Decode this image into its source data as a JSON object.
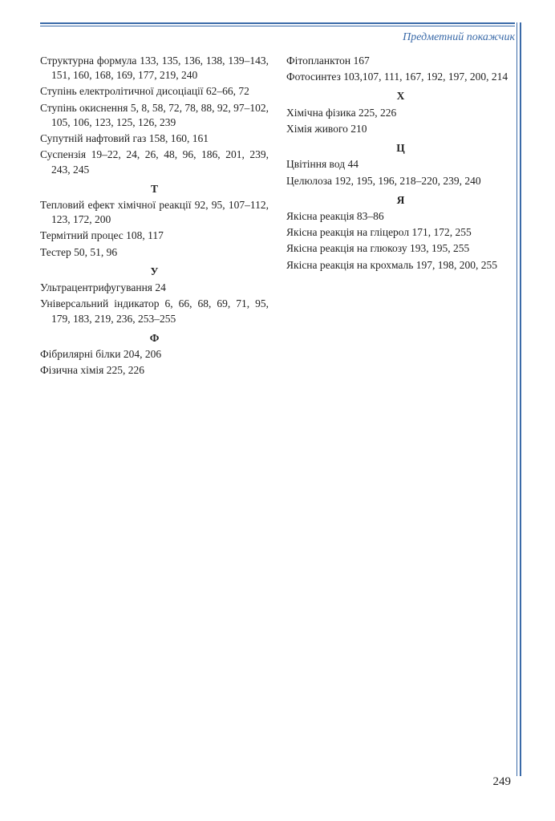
{
  "header": {
    "title": "Предметний покажчик"
  },
  "page_number": "249",
  "left_column": [
    {
      "type": "entry",
      "text": "Структурна формула 133, 135, 136, 138, 139–143, 151, 160, 168, 169, 177, 219, 240"
    },
    {
      "type": "entry",
      "text": "Ступінь електролітичної дисоціації 62–66, 72"
    },
    {
      "type": "entry",
      "text": "Ступінь окиснення 5, 8, 58, 72, 78, 88, 92, 97–102, 105, 106, 123, 125, 126, 239"
    },
    {
      "type": "entry",
      "text": "Супутній нафтовий газ 158, 160, 161"
    },
    {
      "type": "entry",
      "text": "Суспензія 19–22, 24, 26, 48, 96, 186, 201, 239, 243, 245"
    },
    {
      "type": "head",
      "text": "Т"
    },
    {
      "type": "entry",
      "text": "Тепловий ефект хімічної реакції 92, 95, 107–112, 123, 172, 200"
    },
    {
      "type": "entry",
      "text": "Термітний процес 108, 117"
    },
    {
      "type": "entry",
      "text": "Тестер 50, 51, 96"
    },
    {
      "type": "head",
      "text": "У"
    },
    {
      "type": "entry",
      "text": "Ультрацентрифугування 24"
    },
    {
      "type": "entry",
      "text": "Універсальний індикатор 6, 66, 68, 69, 71, 95, 179, 183, 219, 236, 253–255"
    },
    {
      "type": "head",
      "text": "Ф"
    },
    {
      "type": "entry",
      "text": "Фібрилярні білки 204, 206"
    },
    {
      "type": "entry",
      "text": "Фізична хімія 225, 226"
    }
  ],
  "right_column": [
    {
      "type": "entry",
      "text": "Фітопланктон 167"
    },
    {
      "type": "entry",
      "text": "Фотосинтез 103,107, 111, 167, 192, 197, 200, 214"
    },
    {
      "type": "head",
      "text": "Х"
    },
    {
      "type": "entry",
      "text": "Хімічна фізика 225, 226"
    },
    {
      "type": "entry",
      "text": "Хімія живого 210"
    },
    {
      "type": "head",
      "text": "Ц"
    },
    {
      "type": "entry",
      "text": "Цвітіння вод 44"
    },
    {
      "type": "entry",
      "text": "Целюлоза 192, 195, 196, 218–220, 239, 240"
    },
    {
      "type": "head",
      "text": "Я"
    },
    {
      "type": "entry",
      "text": "Якісна реакція 83–86"
    },
    {
      "type": "entry",
      "text": "Якісна реакція на гліцерол 171, 172, 255"
    },
    {
      "type": "entry",
      "text": "Якісна реакція на глюкозу 193, 195, 255"
    },
    {
      "type": "entry",
      "text": "Якісна реакція на крохмаль 197, 198, 200, 255"
    }
  ],
  "colors": {
    "accent": "#3a6aa8",
    "text": "#222222",
    "background": "#ffffff"
  }
}
